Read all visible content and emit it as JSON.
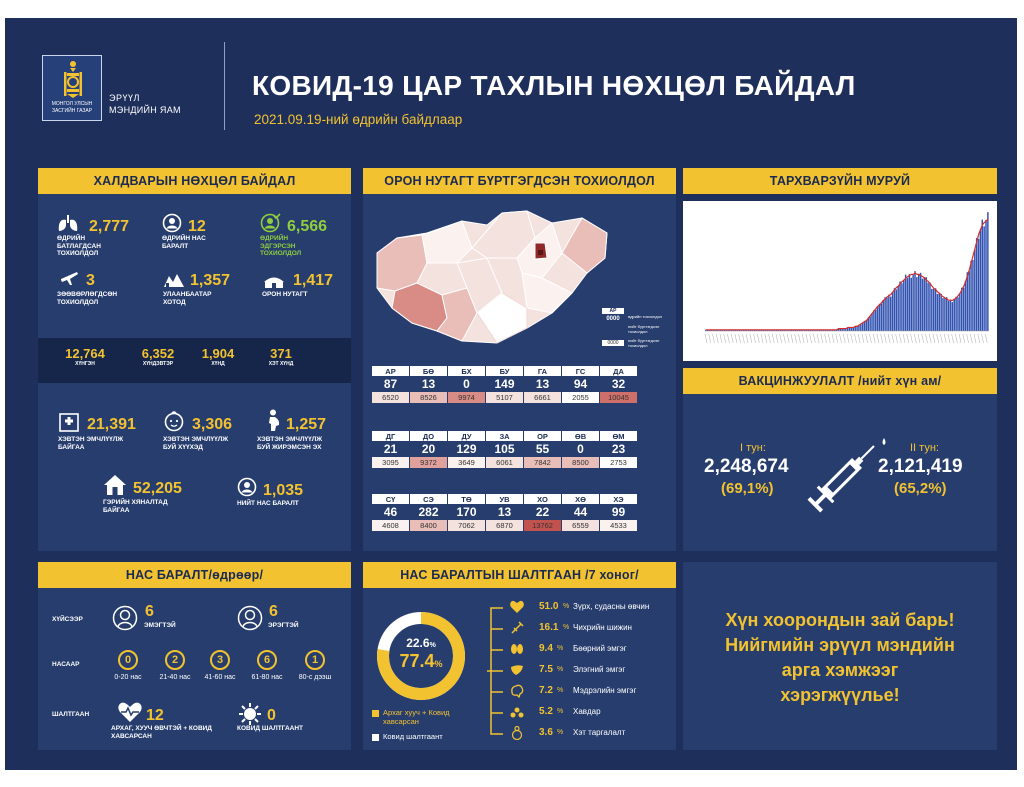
{
  "header": {
    "logo_line1": "МОНГОЛ УЛСЫН",
    "logo_line2": "ЗАСГИЙН ГАЗАР",
    "ministry_line1": "ЭРҮҮЛ",
    "ministry_line2": "МЭНДИЙН ЯАМ",
    "title": "КОВИД-19 ЦАР ТАХЛЫН НӨХЦӨЛ БАЙДАЛ",
    "subtitle": "2021.09.19-ний өдрийн байдлаар"
  },
  "infection": {
    "title": "ХАЛДВАРЫН НӨХЦӨЛ БАЙДАЛ",
    "daily_confirmed": {
      "value": "2,777",
      "label": "ӨДРИЙН БАТЛАГДСАН ТОХИОЛДОЛ",
      "icon": "lungs-icon"
    },
    "daily_deaths": {
      "value": "12",
      "label": "ӨДРИЙН НАС БАРАЛТ",
      "icon": "person-circle-icon"
    },
    "daily_recovered": {
      "value": "6,566",
      "label": "ӨДРИЙН ЭДГЭРСЭН ТОХИОЛДОЛ",
      "icon": "recovered-person-icon"
    },
    "imported": {
      "value": "3",
      "label": "ЗӨӨВӨРЛӨГДСӨН ТОХИОЛДОЛ",
      "icon": "airplane-icon"
    },
    "ulaanbaatar": {
      "value": "1,357",
      "label": "УЛААНБААТАР ХОТОД",
      "icon": "city-icon"
    },
    "local": {
      "value": "1,417",
      "label": "ОРОН НУТАГТ",
      "icon": "ger-icon"
    },
    "groups": [
      {
        "value": "12,764",
        "label": "ХҮНГЭН"
      },
      {
        "value": "6,352",
        "label": "ХҮНДЭВТЭР"
      },
      {
        "value": "1,904",
        "label": "ХҮНД"
      },
      {
        "value": "371",
        "label": "ХЭТ ХҮНД"
      }
    ],
    "hospital": {
      "value": "21,391",
      "label": "ХЭВТЭН ЭМЧЛҮҮЛЖ БАЙГАА",
      "icon": "hospital-icon"
    },
    "children": {
      "value": "3,306",
      "label": "ХЭВТЭН ЭМЧЛҮҮЛЖ БУЙ ХҮҮХЭД",
      "icon": "child-face-icon"
    },
    "pregnant": {
      "value": "1,257",
      "label": "ХЭВТЭН ЭМЧЛҮҮЛЖ БУЙ ЖИРЭМСЭН ЭХ",
      "icon": "pregnant-icon"
    },
    "home": {
      "value": "52,205",
      "label": "ГЭРИЙН ХЯНАЛТАД БАЙГАА",
      "icon": "house-icon"
    },
    "total_deaths": {
      "value": "1,035",
      "label": "НИЙТ НАС БАРАЛТ",
      "icon": "person-circle-icon"
    }
  },
  "regions": {
    "title": "ОРОН НУТАГТ БҮРТГЭГДСЭН ТОХИОЛДОЛ",
    "legend": {
      "header": "АР",
      "row1_value": "0000",
      "row1_text": "өдрийн тохиолдол",
      "row2_text": "нийт бүртгэгдсэн тохиолдол",
      "row3_value": "0000",
      "row3_text": "нийт бүртгэгдсэн тохиолдол"
    },
    "rows": [
      [
        {
          "code": "АР",
          "daily": "87",
          "total": "6520",
          "color": "#f4e2df"
        },
        {
          "code": "БӨ",
          "daily": "13",
          "total": "8526",
          "color": "#e9bdb8"
        },
        {
          "code": "БХ",
          "daily": "0",
          "total": "9974",
          "color": "#d98b86"
        },
        {
          "code": "БУ",
          "daily": "149",
          "total": "5107",
          "color": "#f4e2df"
        },
        {
          "code": "ГА",
          "daily": "13",
          "total": "6661",
          "color": "#f4e2df"
        },
        {
          "code": "ГС",
          "daily": "94",
          "total": "2055",
          "color": "#ffffff"
        },
        {
          "code": "ДА",
          "daily": "32",
          "total": "10045",
          "color": "#cf6f6a"
        }
      ],
      [
        {
          "code": "ДГ",
          "daily": "21",
          "total": "3095",
          "color": "#fbf1ee"
        },
        {
          "code": "ДО",
          "daily": "20",
          "total": "9372",
          "color": "#e0a19c"
        },
        {
          "code": "ДУ",
          "daily": "129",
          "total": "3649",
          "color": "#fbf1ee"
        },
        {
          "code": "ЗА",
          "daily": "105",
          "total": "6061",
          "color": "#f4e2df"
        },
        {
          "code": "ОР",
          "daily": "55",
          "total": "7842",
          "color": "#e9bdb8"
        },
        {
          "code": "ӨВ",
          "daily": "0",
          "total": "8500",
          "color": "#e9bdb8"
        },
        {
          "code": "ӨМ",
          "daily": "23",
          "total": "2753",
          "color": "#ffffff"
        }
      ],
      [
        {
          "code": "СҮ",
          "daily": "46",
          "total": "4608",
          "color": "#fbf1ee"
        },
        {
          "code": "СЭ",
          "daily": "282",
          "total": "8400",
          "color": "#e9bdb8"
        },
        {
          "code": "ТӨ",
          "daily": "170",
          "total": "7062",
          "color": "#f4e2df"
        },
        {
          "code": "УВ",
          "daily": "13",
          "total": "6870",
          "color": "#f4e2df"
        },
        {
          "code": "ХО",
          "daily": "22",
          "total": "13762",
          "color": "#c2524d"
        },
        {
          "code": "ХӨ",
          "daily": "44",
          "total": "6559",
          "color": "#f4e2df"
        },
        {
          "code": "ХЭ",
          "daily": "99",
          "total": "4533",
          "color": "#fbf1ee"
        }
      ]
    ]
  },
  "epi_curve": {
    "title": "ТАРХВАРЗҮЙН МУРУЙ",
    "bar_color": "#3152b0",
    "line_color": "#d62b2b",
    "chart_data": {
      "type": "bar",
      "series": [
        {
          "values": [
            1,
            1,
            1,
            1,
            1,
            1,
            1,
            1,
            1,
            1,
            1,
            1,
            1,
            1,
            1,
            1,
            1,
            1,
            1,
            1,
            1,
            1,
            1,
            1,
            1,
            1,
            1,
            1,
            1,
            1,
            1,
            1,
            1,
            1,
            1,
            1,
            1,
            1,
            1,
            1,
            1,
            1,
            1,
            1,
            1,
            1,
            1,
            1,
            1,
            1,
            1,
            1,
            1,
            1,
            1,
            1,
            1,
            1,
            1,
            1,
            1,
            1,
            1,
            1,
            1,
            1,
            1,
            1,
            1,
            1,
            1,
            2,
            2,
            2,
            2,
            2,
            3,
            3,
            3,
            3,
            4,
            4,
            5,
            6,
            7,
            8,
            9,
            11,
            13,
            15,
            17,
            19,
            21,
            22,
            24,
            26,
            27,
            29,
            30,
            31,
            33,
            35,
            37,
            38,
            40,
            42,
            43,
            45,
            46,
            47,
            48,
            48,
            49,
            48,
            48,
            47,
            46,
            45,
            43,
            42,
            40,
            38,
            36,
            35,
            33,
            32,
            30,
            29,
            28,
            27,
            26,
            26,
            26,
            27,
            28,
            30,
            32,
            35,
            38,
            42,
            47,
            52,
            58,
            64,
            70,
            76,
            82,
            86,
            90,
            92,
            93,
            95
          ]
        }
      ]
    }
  },
  "vaccination": {
    "title": "ВАКЦИНЖУУЛАЛТ /нийт хүн ам/",
    "dose1_label": "I тун:",
    "dose1_value": "2,248,674",
    "dose1_pct": "(69,1%)",
    "dose2_label": "II тун:",
    "dose2_value": "2,121,419",
    "dose2_pct": "(65,2%)"
  },
  "deaths": {
    "title": "НАС БАРАЛТ/өдрөөр/",
    "sex_label": "ХҮЙСЭЭР",
    "female_value": "6",
    "female_label": "ЭМЭГТЭЙ",
    "male_value": "6",
    "male_label": "ЭРЭГТЭЙ",
    "age_label": "НАСААР",
    "ages": [
      {
        "value": "0",
        "label": "0-20 нас"
      },
      {
        "value": "2",
        "label": "21-40 нас"
      },
      {
        "value": "3",
        "label": "41-60 нас"
      },
      {
        "value": "6",
        "label": "61-80 нас"
      },
      {
        "value": "1",
        "label": "80-с дээш"
      }
    ],
    "cause_label": "ШАЛТГААН",
    "chronic_value": "12",
    "chronic_label": "АРХАГ, ХУУЧ ӨВЧТЭЙ + КОВИД ХАВСАРСАН",
    "covid_value": "0",
    "covid_label": "КОВИД ШАЛТГААНТ"
  },
  "causes": {
    "title": "НАС БАРАЛТЫН ШАЛТГААН /7 хоног/",
    "donut_chronic_pct": 77.4,
    "donut_covid_pct": 22.6,
    "chronic_int": "77.4",
    "covid_int": "22.6",
    "pct_sign": "%",
    "legend_chronic": "Архаг хууч + Ковид хавсарсан",
    "legend_covid": "Ковид шалтгаант",
    "items": [
      {
        "pct": "51.0",
        "label": "Зүрх, судасны өвчин",
        "icon": "heart-icon"
      },
      {
        "pct": "16.1",
        "label": "Чихрийн шижин",
        "icon": "syringe-icon"
      },
      {
        "pct": "9.4",
        "label": "Бөөрний эмгэг",
        "icon": "kidney-icon"
      },
      {
        "pct": "7.5",
        "label": "Элэгний эмгэг",
        "icon": "liver-icon"
      },
      {
        "pct": "7.2",
        "label": "Мэдрэлийн эмгэг",
        "icon": "brain-icon"
      },
      {
        "pct": "5.2",
        "label": "Хавдар",
        "icon": "cancer-icon"
      },
      {
        "pct": "3.6",
        "label": "Хэт таргалалт",
        "icon": "obesity-icon"
      }
    ]
  },
  "message": {
    "line1": "Хүн хоорондын зай барь!",
    "line2": "Нийгмийн эрүүл мэндийн",
    "line3": "арга хэмжээг",
    "line4": "хэрэгжүүлье!"
  }
}
